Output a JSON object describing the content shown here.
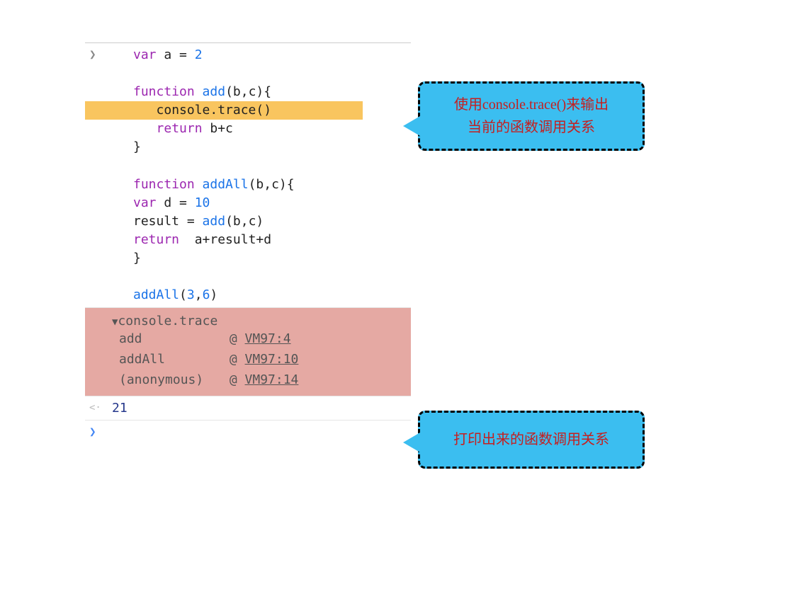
{
  "colors": {
    "keyword": "#9c27b0",
    "function": "#1a73e8",
    "number": "#1a73e8",
    "text": "#333333",
    "highlight_bg": "#f9c55f",
    "trace_bg": "#e5a9a3",
    "callout_bg": "#3bbef0",
    "callout_text": "#c51f1f",
    "link": "#555555",
    "result": "#26388c",
    "border": "#e5e5e5",
    "prompt_grey": "#888888",
    "prompt_blue": "#4285f4"
  },
  "code": {
    "l1_var": "var",
    "l1_rest": " a = ",
    "l1_num": "2",
    "l3_fn": "function",
    "l3_name": " add",
    "l3_params": "(b,c){",
    "l4_indent": "   ",
    "l4_call": "console.trace()",
    "l5_indent": "   ",
    "l5_ret": "return",
    "l5_expr": " b+c",
    "l6_close": "}",
    "l8_fn": "function",
    "l8_name": " addAll",
    "l8_params": "(b,c){",
    "l9_var": "var",
    "l9_rest": " d = ",
    "l9_num": "10",
    "l10_lhs": "result = ",
    "l10_call": "add",
    "l10_args": "(b,c)",
    "l11_ret": "return",
    "l11_expr": "  a+result+d",
    "l12_close": "}",
    "l14_call": "addAll",
    "l14_open": "(",
    "l14_a": "3",
    "l14_comma": ",",
    "l14_b": "6",
    "l14_close": ")"
  },
  "trace": {
    "header": "console.trace",
    "rows": [
      {
        "fn": "add",
        "at": "@",
        "link": "VM97:4"
      },
      {
        "fn": "addAll",
        "at": "@",
        "link": "VM97:10"
      },
      {
        "fn": "(anonymous)",
        "at": "@",
        "link": "VM97:14"
      }
    ]
  },
  "result": "21",
  "callouts": {
    "c1_line1": "使用console.trace()来输出",
    "c1_line2": "当前的函数调用关系",
    "c2": "打印出来的函数调用关系"
  }
}
